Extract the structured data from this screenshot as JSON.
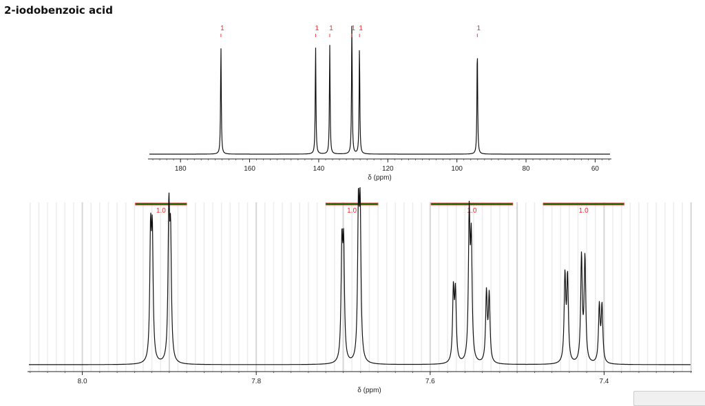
{
  "title": "2-iodobenzoic acid",
  "chart_data": [
    {
      "type": "line",
      "title": "",
      "xlabel": "δ (ppm)",
      "xlim": [
        189.4,
        55.3
      ],
      "x_reversed": true,
      "xticks": [
        180,
        160,
        140,
        120,
        100,
        80,
        60
      ],
      "tick_labels": [
        "180",
        "160",
        "140",
        "120",
        "100",
        "80",
        "60"
      ],
      "grid": false,
      "peaks": [
        {
          "ppm": 168.3,
          "height": 0.83,
          "label": "1"
        },
        {
          "ppm": 140.9,
          "height": 0.83,
          "label": "1"
        },
        {
          "ppm": 136.8,
          "height": 0.83,
          "label": "1"
        },
        {
          "ppm": 130.4,
          "height": 1.0,
          "label": "1"
        },
        {
          "ppm": 128.2,
          "height": 0.83,
          "label": "1"
        },
        {
          "ppm": 94.1,
          "height": 0.83,
          "label": "1"
        }
      ]
    },
    {
      "type": "line",
      "title": "",
      "xlabel": "δ (ppm)",
      "xlim": [
        8.063,
        7.299
      ],
      "x_reversed": true,
      "xticks": [
        8.0,
        7.8,
        7.6,
        7.4
      ],
      "tick_labels": [
        "8.0",
        "7.8",
        "7.6",
        "7.4"
      ],
      "grid": true,
      "peaks": [
        {
          "ppm": 7.9215,
          "height": 0.85
        },
        {
          "ppm": 7.9195,
          "height": 0.83
        },
        {
          "ppm": 7.9005,
          "height": 1.0
        },
        {
          "ppm": 7.8985,
          "height": 0.8
        },
        {
          "ppm": 7.7015,
          "height": 0.77
        },
        {
          "ppm": 7.6995,
          "height": 0.75
        },
        {
          "ppm": 7.6825,
          "height": 1.0
        },
        {
          "ppm": 7.6805,
          "height": 0.98
        },
        {
          "ppm": 7.5733,
          "height": 0.49
        },
        {
          "ppm": 7.5709,
          "height": 0.47
        },
        {
          "ppm": 7.5551,
          "height": 0.99
        },
        {
          "ppm": 7.5527,
          "height": 0.8
        },
        {
          "ppm": 7.5353,
          "height": 0.48
        },
        {
          "ppm": 7.5321,
          "height": 0.46
        },
        {
          "ppm": 7.445,
          "height": 0.59
        },
        {
          "ppm": 7.442,
          "height": 0.58
        },
        {
          "ppm": 7.426,
          "height": 0.73
        },
        {
          "ppm": 7.422,
          "height": 0.72
        },
        {
          "ppm": 7.4055,
          "height": 0.39
        },
        {
          "ppm": 7.4024,
          "height": 0.39
        }
      ],
      "integrals": [
        {
          "from": 7.939,
          "to": 7.88,
          "value": "1.0"
        },
        {
          "from": 7.72,
          "to": 7.66,
          "value": "1.0"
        },
        {
          "from": 7.599,
          "to": 7.505,
          "value": "1.0"
        },
        {
          "from": 7.47,
          "to": 7.377,
          "value": "1.0"
        }
      ],
      "integral_color": "#1a6e00",
      "integral_outline_color": "#ff3030"
    }
  ]
}
